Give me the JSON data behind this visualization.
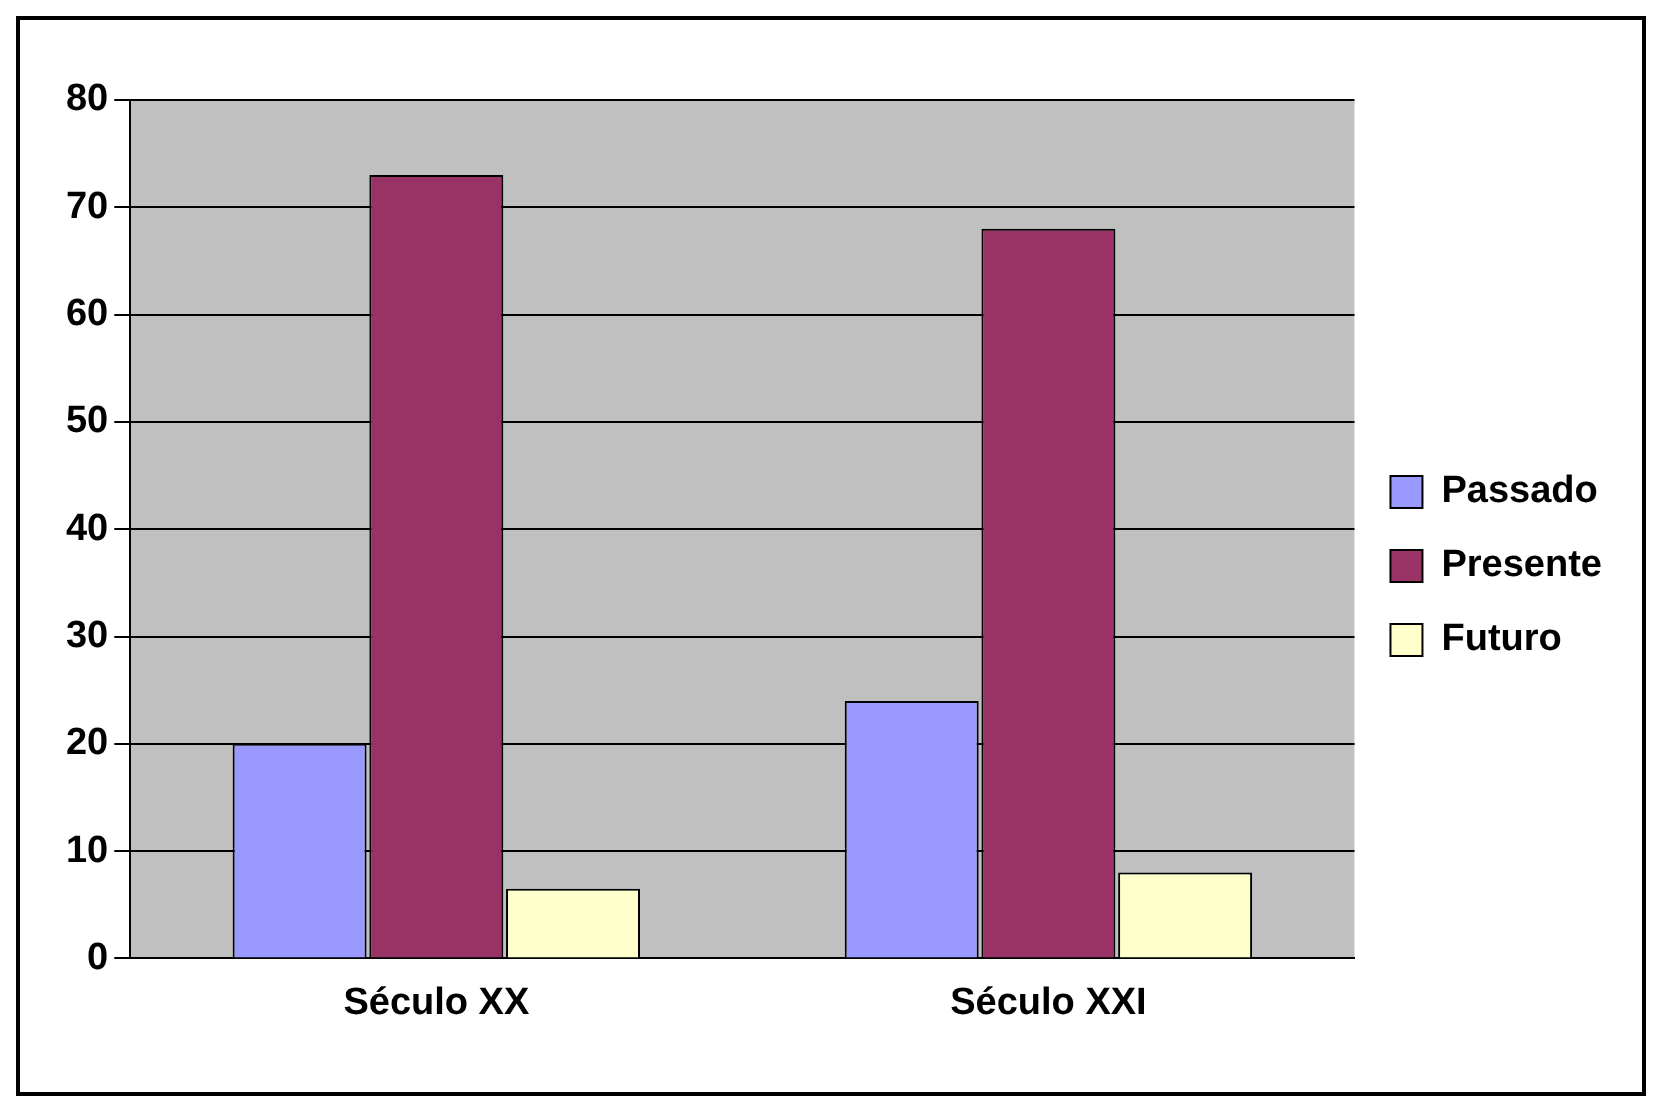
{
  "chart_data": {
    "type": "bar",
    "categories": [
      "Século XX",
      "Século XXI"
    ],
    "series": [
      {
        "name": "Passado",
        "color": "#9999ff",
        "values": [
          20,
          24
        ]
      },
      {
        "name": "Presente",
        "color": "#993366",
        "values": [
          73,
          68
        ]
      },
      {
        "name": "Futuro",
        "color": "#ffffcc",
        "values": [
          6.5,
          8
        ]
      }
    ],
    "ylim": [
      0,
      80
    ],
    "yticks": [
      0,
      10,
      20,
      30,
      40,
      50,
      60,
      70,
      80
    ],
    "grid": "y",
    "legend": "right"
  }
}
